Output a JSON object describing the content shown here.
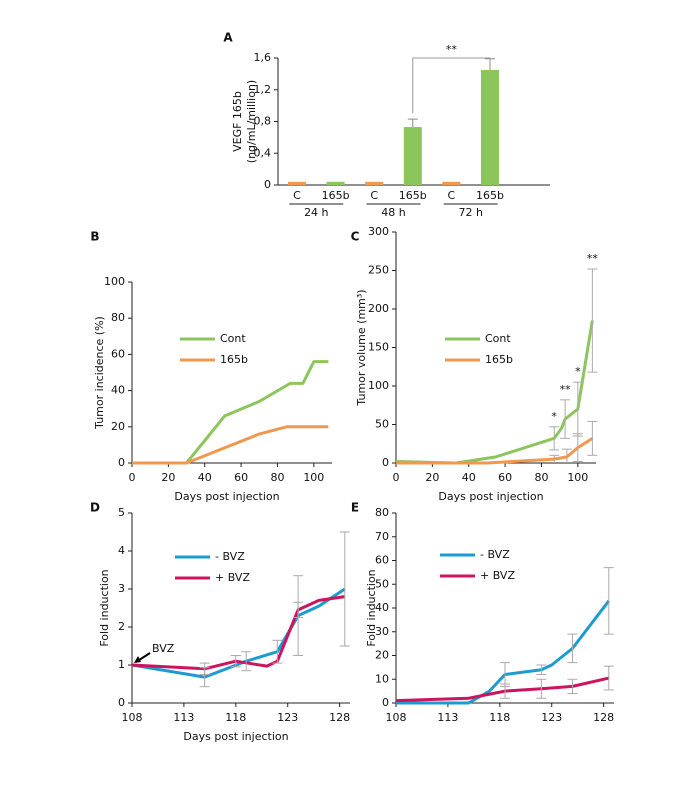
{
  "chart_data": [
    {
      "type": "bar",
      "label": "A",
      "ylabel": [
        "VEGF 165b",
        "(ng/mL/million)"
      ],
      "categories": [
        "C",
        "165b",
        "C",
        "165b",
        "C",
        "165b"
      ],
      "groups": [
        "24 h",
        "48 h",
        "72 h"
      ],
      "values": [
        0.04,
        0.04,
        0.04,
        0.73,
        0.04,
        1.45
      ],
      "errors": [
        null,
        null,
        null,
        0.1,
        null,
        0.14
      ],
      "colors": [
        "#f0984d",
        "#8dc55d",
        "#f0984d",
        "#8dc55d",
        "#f0984d",
        "#8dc55d"
      ],
      "ylim": [
        0,
        1.6
      ],
      "yticks": [
        0,
        {
          "value": 0.4,
          "label": "0,4"
        },
        {
          "value": 0.8,
          "label": "0,8"
        },
        {
          "value": 1.2,
          "label": "1,2"
        },
        {
          "value": 1.6,
          "label": "1,6"
        }
      ],
      "annotations": [
        "**"
      ]
    },
    {
      "type": "line",
      "label": "B",
      "ylabel": "Tumor incidence (%)",
      "xlabel": "Days post injection",
      "xlim": [
        0,
        110
      ],
      "xticks": [
        0,
        20,
        40,
        60,
        80,
        100
      ],
      "ylim": [
        0,
        100
      ],
      "yticks": [
        0,
        20,
        40,
        60,
        80,
        100
      ],
      "series": [
        {
          "name": "Cont",
          "color": "#8dc55d",
          "x": [
            0,
            30,
            51,
            70,
            87,
            94,
            100,
            108
          ],
          "values": [
            0,
            0,
            26,
            34,
            44,
            44,
            56,
            56
          ]
        },
        {
          "name": "165b",
          "color": "#f0984d",
          "x": [
            0,
            30,
            50,
            70,
            85,
            108
          ],
          "values": [
            0,
            0,
            8,
            16,
            20,
            20
          ]
        }
      ]
    },
    {
      "type": "line",
      "label": "C",
      "ylabel": "Tumor volume (mm³)",
      "xlabel": "Days post injection",
      "xlim": [
        0,
        110
      ],
      "xticks": [
        0,
        20,
        40,
        60,
        80,
        100
      ],
      "ylim": [
        0,
        300
      ],
      "yticks": [
        0,
        50,
        100,
        150,
        200,
        250,
        300
      ],
      "series": [
        {
          "name": "Cont",
          "color": "#8dc55d",
          "x": [
            0,
            33,
            55,
            87,
            91,
            93,
            100,
            108
          ],
          "values": [
            2,
            0,
            8,
            32,
            45,
            57,
            70,
            185
          ],
          "errors": [
            null,
            null,
            null,
            15,
            null,
            25,
            35,
            67
          ]
        },
        {
          "name": "165b",
          "color": "#f0984d",
          "x": [
            0,
            50,
            87,
            94,
            100,
            108
          ],
          "values": [
            0,
            0,
            5,
            8,
            20,
            32
          ],
          "errors": [
            null,
            null,
            5,
            10,
            18,
            22
          ]
        }
      ],
      "annotations": [
        "*",
        "**",
        "*",
        "**"
      ]
    },
    {
      "type": "line",
      "label": "D",
      "ylabel": "Fold induction",
      "xlabel": "Days post injection",
      "xlim": [
        108,
        129
      ],
      "xticks": [
        108,
        113,
        118,
        123,
        128
      ],
      "ylim": [
        0,
        5
      ],
      "yticks": [
        0,
        1,
        2,
        3,
        4,
        5
      ],
      "series": [
        {
          "name": "- BVZ",
          "color": "#1b9bd0",
          "x": [
            108,
            115,
            119,
            122,
            124,
            126,
            128.5
          ],
          "values": [
            1,
            0.68,
            1.1,
            1.35,
            2.3,
            2.55,
            3.0
          ],
          "errors": [
            null,
            0.25,
            0.25,
            0.3,
            1.05,
            null,
            1.5
          ]
        },
        {
          "name": "+ BVZ",
          "color": "#cc1461",
          "x": [
            108,
            115,
            118,
            121,
            122,
            124,
            126,
            128.5
          ],
          "values": [
            1,
            0.9,
            1.1,
            0.97,
            1.1,
            2.45,
            2.7,
            2.8
          ],
          "errors": [
            null,
            0.15,
            0.15,
            null,
            null,
            0.2,
            null,
            null
          ]
        }
      ],
      "annotations": [
        "BVZ"
      ]
    },
    {
      "type": "line",
      "label": "E",
      "ylabel": "Fold induction",
      "xlim": [
        108,
        129
      ],
      "xticks": [
        108,
        113,
        118,
        123,
        128
      ],
      "ylim": [
        0,
        80
      ],
      "yticks": [
        0,
        10,
        20,
        30,
        40,
        50,
        60,
        70,
        80
      ],
      "series": [
        {
          "name": "- BVZ",
          "color": "#1b9bd0",
          "x": [
            108,
            115,
            117,
            118.5,
            122,
            123,
            125,
            128.5
          ],
          "values": [
            0,
            0,
            5,
            12,
            14,
            16,
            23,
            43
          ],
          "errors": [
            null,
            null,
            null,
            5,
            2,
            null,
            6,
            14
          ]
        },
        {
          "name": "+ BVZ",
          "color": "#cc1461",
          "x": [
            108,
            115,
            118.5,
            122,
            125,
            128.5
          ],
          "values": [
            1,
            2,
            5,
            6,
            7,
            10.5
          ],
          "errors": [
            null,
            null,
            3,
            4,
            3,
            5
          ]
        }
      ]
    }
  ]
}
